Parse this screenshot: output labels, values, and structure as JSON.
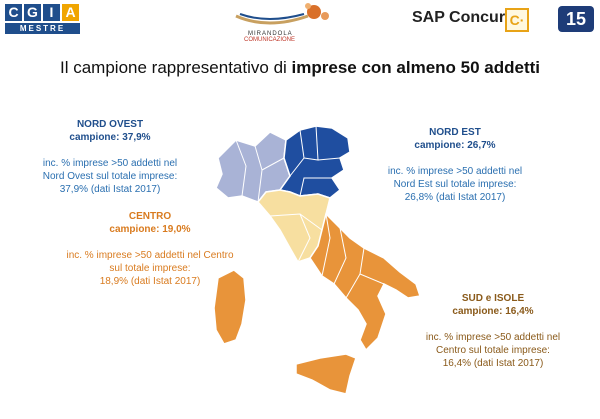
{
  "header": {
    "cgia_letters": [
      "C",
      "G",
      "I",
      "A"
    ],
    "cgia_city": "MESTRE",
    "mirandola_line1": "MIRANDOLA",
    "mirandola_line2": "COMUNICAZIONE",
    "sap_concur": "SAP Concur",
    "sap_glyph": "C·",
    "page_number": "15"
  },
  "title": {
    "prefix": "Il campione rappresentativo di ",
    "bold": "imprese con almeno 50 addetti"
  },
  "regions": {
    "nord_ovest": {
      "name": "NORD OVEST",
      "campione": "campione: 37,9%",
      "desc": [
        "inc. % imprese >50 addetti nel",
        "Nord Ovest sul totale imprese:",
        "37,9% (dati Istat 2017)"
      ]
    },
    "nord_est": {
      "name": "NORD EST",
      "campione": "campione: 26,7%",
      "desc": [
        "inc. % imprese >50 addetti nel",
        "Nord Est sul totale imprese:",
        "26,8% (dati Istat 2017)"
      ]
    },
    "centro": {
      "name": "CENTRO",
      "campione": "campione: 19,0%",
      "desc": [
        "inc. % imprese >50 addetti nel Centro",
        "sul totale imprese:",
        "18,9% (dati Istat 2017)"
      ]
    },
    "sud_isole": {
      "name": "SUD e ISOLE",
      "campione": "campione: 16,4%",
      "desc": [
        "inc. % imprese >50 addetti nel",
        "Centro sul totale imprese:",
        "16,4% (dati Istat 2017)"
      ]
    }
  },
  "colors": {
    "nord_ovest": "#a9b3d6",
    "nord_est": "#1f4ea0",
    "centro": "#f7dfa0",
    "sud_isole": "#e8943a",
    "brand_blue": "#1f4e8c",
    "badge": "#1e3c78"
  }
}
